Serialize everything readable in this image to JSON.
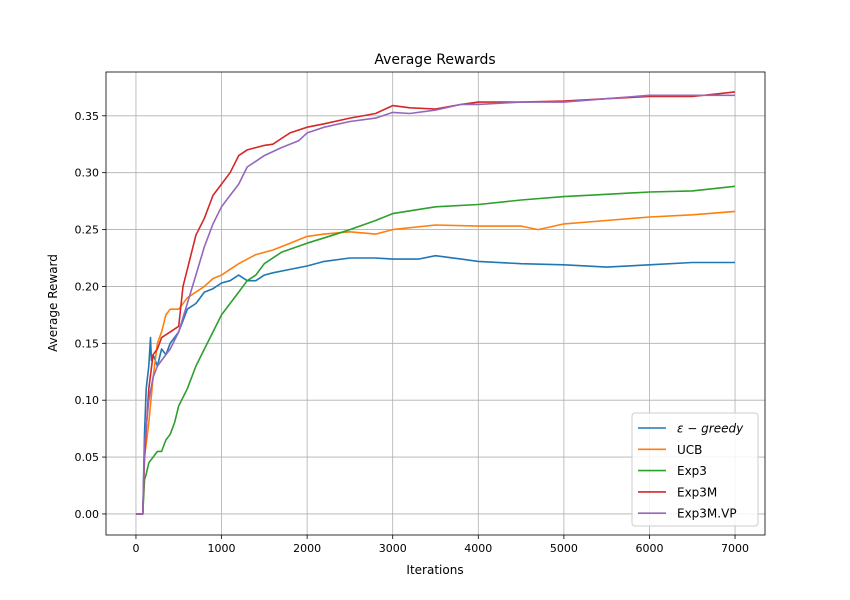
{
  "chart_data": {
    "type": "line",
    "title": "Average Rewards",
    "xlabel": "Iterations",
    "ylabel": "Average Reward",
    "xlim": [
      -350,
      7350
    ],
    "ylim": [
      -0.0185,
      0.3885
    ],
    "xticks": [
      0,
      1000,
      2000,
      3000,
      4000,
      5000,
      6000,
      7000
    ],
    "xtick_labels": [
      "0",
      "1000",
      "2000",
      "3000",
      "4000",
      "5000",
      "6000",
      "7000"
    ],
    "yticks": [
      0.0,
      0.05,
      0.1,
      0.15,
      0.2,
      0.25,
      0.3,
      0.35
    ],
    "ytick_labels": [
      "0.00",
      "0.05",
      "0.10",
      "0.15",
      "0.20",
      "0.25",
      "0.30",
      "0.35"
    ],
    "grid": true,
    "legend_position": "lower-right",
    "series": [
      {
        "name": "ε − greedy",
        "color": "#1f77b4",
        "x": [
          0,
          80,
          100,
          120,
          150,
          170,
          180,
          200,
          250,
          300,
          350,
          400,
          450,
          500,
          550,
          600,
          700,
          800,
          900,
          1000,
          1100,
          1200,
          1300,
          1400,
          1500,
          1600,
          1800,
          2000,
          2200,
          2500,
          2800,
          3000,
          3300,
          3500,
          3800,
          4000,
          4500,
          5000,
          5500,
          6000,
          6500,
          7000
        ],
        "y": [
          0.0,
          0.0,
          0.07,
          0.11,
          0.13,
          0.155,
          0.135,
          0.14,
          0.13,
          0.145,
          0.14,
          0.15,
          0.155,
          0.16,
          0.17,
          0.18,
          0.185,
          0.195,
          0.198,
          0.203,
          0.205,
          0.21,
          0.205,
          0.205,
          0.21,
          0.212,
          0.215,
          0.218,
          0.222,
          0.225,
          0.225,
          0.224,
          0.224,
          0.227,
          0.224,
          0.222,
          0.22,
          0.219,
          0.217,
          0.219,
          0.221,
          0.221
        ]
      },
      {
        "name": "UCB",
        "color": "#ff7f0e",
        "x": [
          0,
          80,
          100,
          150,
          200,
          250,
          300,
          350,
          400,
          450,
          500,
          600,
          700,
          800,
          900,
          1000,
          1200,
          1400,
          1600,
          1800,
          2000,
          2200,
          2500,
          2800,
          3000,
          3500,
          4000,
          4500,
          4700,
          5000,
          5500,
          6000,
          6500,
          7000
        ],
        "y": [
          0.0,
          0.0,
          0.05,
          0.08,
          0.12,
          0.15,
          0.16,
          0.175,
          0.18,
          0.18,
          0.18,
          0.19,
          0.195,
          0.2,
          0.207,
          0.21,
          0.22,
          0.228,
          0.232,
          0.238,
          0.244,
          0.246,
          0.248,
          0.246,
          0.25,
          0.254,
          0.253,
          0.253,
          0.25,
          0.255,
          0.258,
          0.261,
          0.263,
          0.266
        ]
      },
      {
        "name": "Exp3",
        "color": "#2ca02c",
        "x": [
          0,
          80,
          100,
          120,
          150,
          200,
          250,
          300,
          350,
          400,
          450,
          500,
          600,
          700,
          800,
          900,
          1000,
          1100,
          1200,
          1300,
          1400,
          1500,
          1700,
          2000,
          2300,
          2500,
          2800,
          3000,
          3500,
          4000,
          4500,
          5000,
          5500,
          6000,
          6500,
          7000
        ],
        "y": [
          0.0,
          0.0,
          0.03,
          0.035,
          0.045,
          0.05,
          0.055,
          0.055,
          0.065,
          0.07,
          0.08,
          0.095,
          0.11,
          0.13,
          0.145,
          0.16,
          0.175,
          0.185,
          0.195,
          0.205,
          0.21,
          0.22,
          0.23,
          0.238,
          0.245,
          0.25,
          0.258,
          0.264,
          0.27,
          0.272,
          0.276,
          0.279,
          0.281,
          0.283,
          0.284,
          0.288
        ]
      },
      {
        "name": "Exp3M",
        "color": "#d62728",
        "x": [
          0,
          80,
          100,
          150,
          200,
          250,
          300,
          400,
          500,
          550,
          600,
          700,
          800,
          900,
          1000,
          1100,
          1200,
          1300,
          1400,
          1500,
          1600,
          1700,
          1800,
          2000,
          2200,
          2500,
          2800,
          3000,
          3200,
          3500,
          3800,
          4000,
          4500,
          5000,
          5500,
          6000,
          6500,
          7000
        ],
        "y": [
          0.0,
          0.0,
          0.05,
          0.11,
          0.14,
          0.145,
          0.155,
          0.16,
          0.165,
          0.2,
          0.215,
          0.245,
          0.26,
          0.28,
          0.29,
          0.3,
          0.315,
          0.32,
          0.322,
          0.324,
          0.325,
          0.33,
          0.335,
          0.34,
          0.343,
          0.348,
          0.352,
          0.359,
          0.357,
          0.356,
          0.36,
          0.362,
          0.362,
          0.363,
          0.365,
          0.367,
          0.367,
          0.371
        ]
      },
      {
        "name": "Exp3M.VP",
        "color": "#9467bd",
        "x": [
          0,
          80,
          100,
          150,
          200,
          250,
          300,
          400,
          500,
          600,
          700,
          800,
          900,
          1000,
          1100,
          1200,
          1300,
          1400,
          1500,
          1700,
          1900,
          2000,
          2200,
          2500,
          2800,
          3000,
          3200,
          3500,
          3800,
          4000,
          4500,
          5000,
          5500,
          6000,
          6500,
          7000
        ],
        "y": [
          0.0,
          0.0,
          0.06,
          0.1,
          0.12,
          0.13,
          0.135,
          0.145,
          0.16,
          0.185,
          0.21,
          0.235,
          0.255,
          0.27,
          0.28,
          0.29,
          0.305,
          0.31,
          0.315,
          0.322,
          0.328,
          0.335,
          0.34,
          0.345,
          0.348,
          0.353,
          0.352,
          0.355,
          0.36,
          0.36,
          0.362,
          0.362,
          0.365,
          0.368,
          0.368,
          0.368
        ]
      }
    ]
  }
}
